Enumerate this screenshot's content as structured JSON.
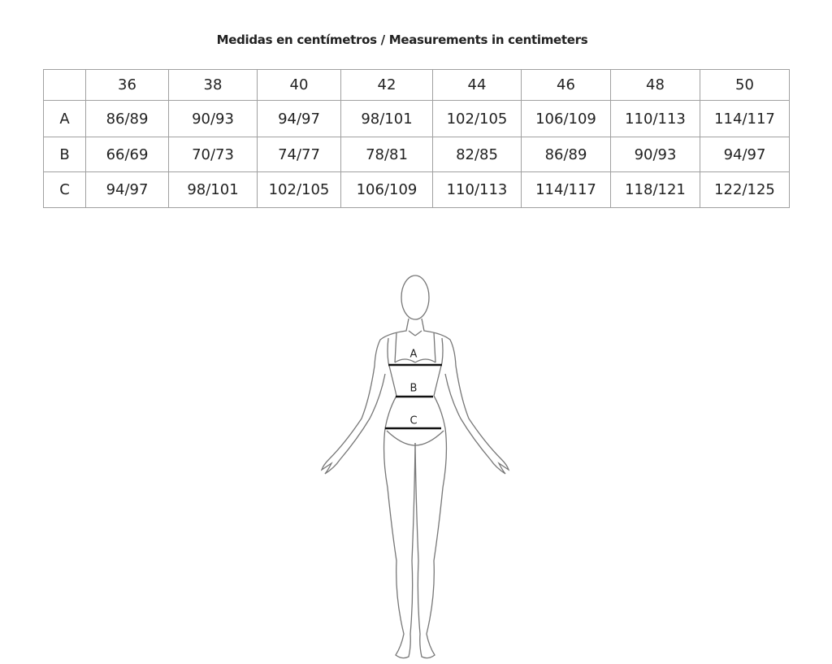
{
  "header": {
    "title": "Medidas en centímetros / Measurements in centimeters"
  },
  "table": {
    "columns": [
      "36",
      "38",
      "40",
      "42",
      "44",
      "46",
      "48",
      "50"
    ],
    "rows": [
      {
        "label": "A",
        "values": [
          "86/89",
          "90/93",
          "94/97",
          "98/101",
          "102/105",
          "106/109",
          "110/113",
          "114/117"
        ]
      },
      {
        "label": "B",
        "values": [
          "66/69",
          "70/73",
          "74/77",
          "78/81",
          "82/85",
          "86/89",
          "90/93",
          "94/97"
        ]
      },
      {
        "label": "C",
        "values": [
          "94/97",
          "98/101",
          "102/105",
          "106/109",
          "110/113",
          "114/117",
          "118/121",
          "122/125"
        ]
      }
    ]
  },
  "figure": {
    "labels": [
      "A",
      "B",
      "C"
    ]
  }
}
